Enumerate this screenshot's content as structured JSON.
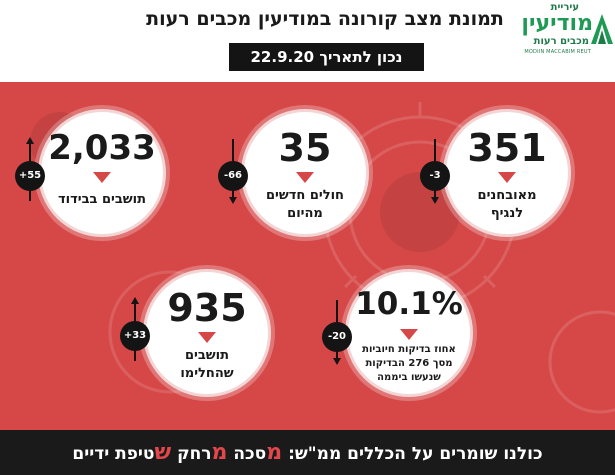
{
  "header": {
    "title": "תמונת מצב קורונה במודיעין מכבים רעות",
    "date_label": "נכון לתאריך 22.9.20"
  },
  "logo": {
    "top": "עיריית",
    "main": "מודיעין",
    "sub": "מכבים רעות",
    "en": "MODIIN MACCABIM REUT"
  },
  "stats": {
    "confirmed": {
      "value": "351",
      "label_line1": "מאובחנים",
      "label_line2": "לנגיף",
      "change": "-3",
      "direction": "down"
    },
    "new_sick": {
      "value": "35",
      "label_line1": "חולים חדשים",
      "label_line2": "מהיום",
      "change": "-66",
      "direction": "down"
    },
    "isolation": {
      "value": "2,033",
      "label_line1": "תושבים בבידוד",
      "change": "+55",
      "direction": "up"
    },
    "positive_rate": {
      "value": "10.1%",
      "label_line1": "אחוז בדיקות חיוביות",
      "label_line2": "מסך 276 הבדיקות",
      "label_line3": "שנעשו ביממה",
      "change": "-20",
      "direction": "down"
    },
    "recovered": {
      "value": "935",
      "label_line1": "תושבים",
      "label_line2": "שהחלימו",
      "change": "+33",
      "direction": "up"
    }
  },
  "footer": {
    "lead": "כולנו שומרים על הכללים ממ\"ש:",
    "m1": "מ",
    "w1": "סכה",
    "m2": "מ",
    "w2": "רחק",
    "s": "ש",
    "w3": "טיפת ידיים"
  },
  "colors": {
    "panel_red": "#d64848",
    "dark": "#141414",
    "highlight": "#e2474b",
    "logo_green": "#1f9a55"
  }
}
